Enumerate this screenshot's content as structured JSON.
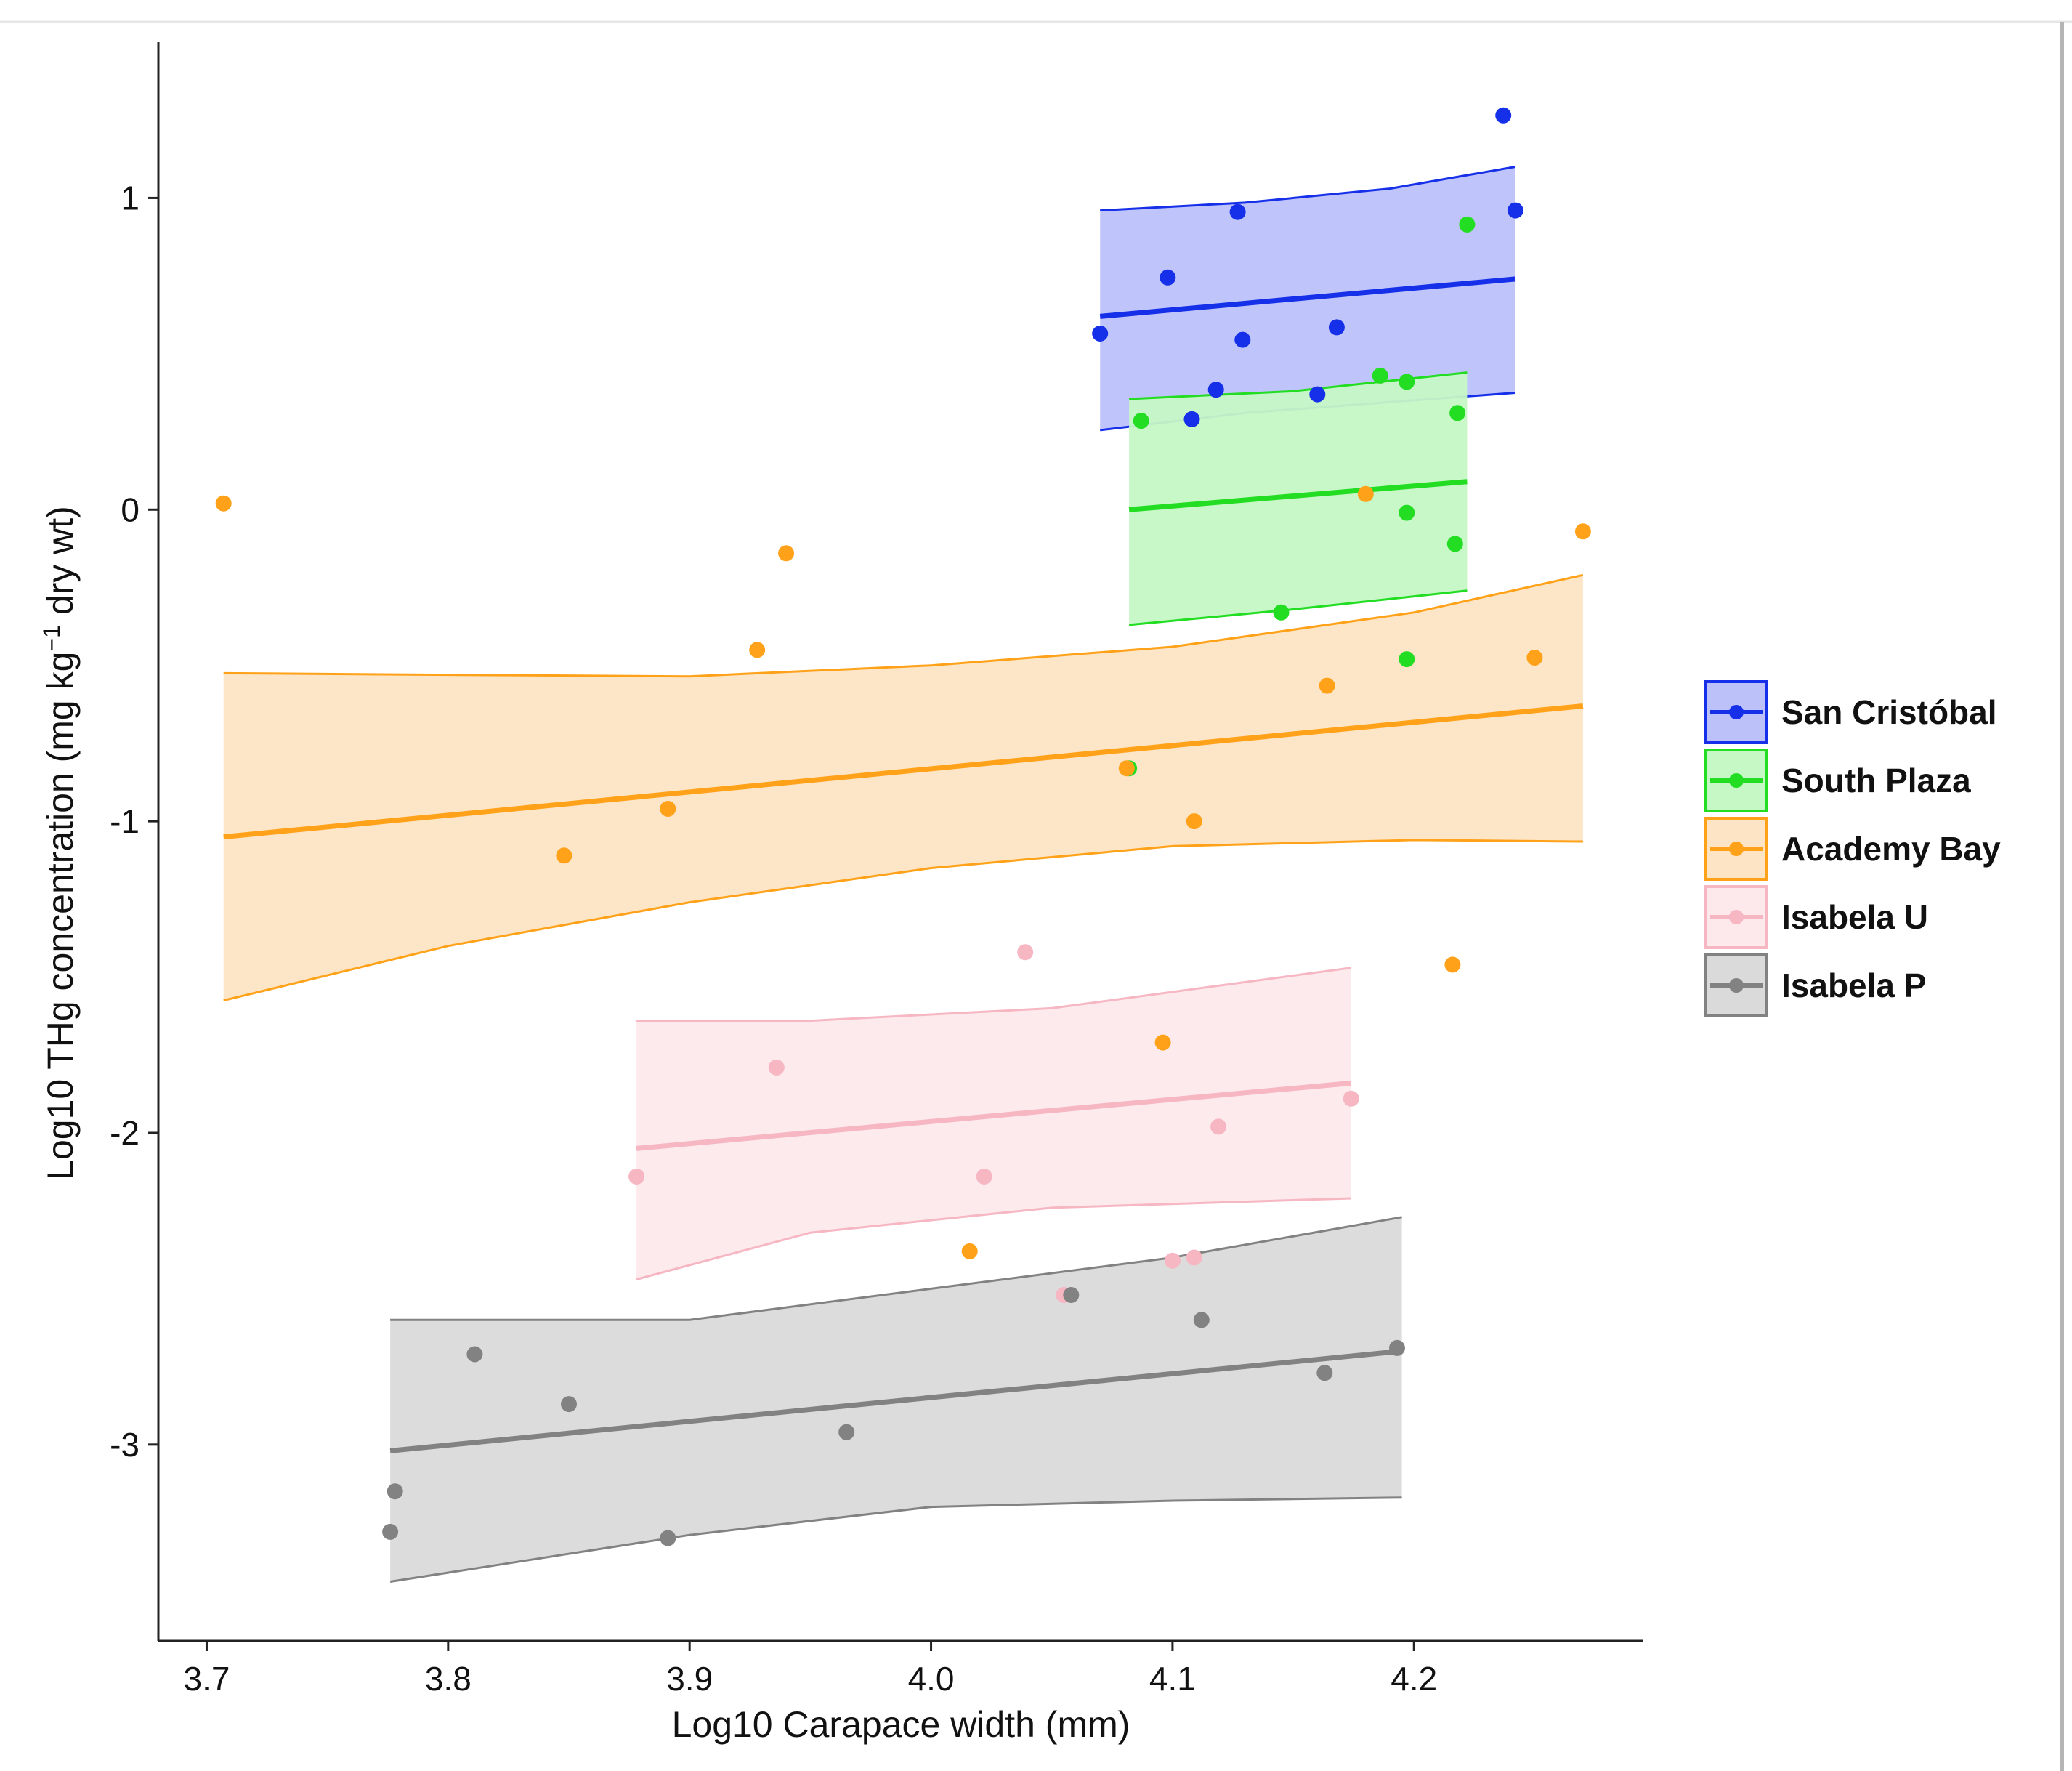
{
  "chart_data": {
    "type": "scatter",
    "title": "",
    "xlabel": "Log10 Carapace width (mm)",
    "ylabel_parts": [
      "Log10 THg concentration (mg kg",
      "−1",
      " dry wt)"
    ],
    "xlim": [
      3.68,
      4.295
    ],
    "ylim": [
      -3.63,
      1.5
    ],
    "x_ticks": [
      3.7,
      3.8,
      3.9,
      4.0,
      4.1,
      4.2
    ],
    "x_tick_labels": [
      "3.7",
      "3.8",
      "3.9",
      "4.0",
      "4.1",
      "4.2"
    ],
    "y_ticks": [
      -3,
      -2,
      -1,
      0,
      1
    ],
    "y_tick_labels": [
      "-3",
      "-2",
      "-1",
      "0",
      "1"
    ],
    "grid": false,
    "legend_position": "right",
    "series": [
      {
        "name": "San Cristóbal",
        "color": "#1530e8",
        "fill": "#bcc1fa",
        "points": [
          [
            4.07,
            0.565
          ],
          [
            4.098,
            0.745
          ],
          [
            4.127,
            0.955
          ],
          [
            4.129,
            0.545
          ],
          [
            4.118,
            0.385
          ],
          [
            4.108,
            0.29
          ],
          [
            4.168,
            0.585
          ],
          [
            4.16,
            0.37
          ],
          [
            4.237,
            1.265
          ],
          [
            4.242,
            0.96
          ]
        ],
        "fit": [
          [
            4.07,
            0.62
          ],
          [
            4.242,
            0.74
          ]
        ],
        "band_upper": [
          [
            4.07,
            0.96
          ],
          [
            4.13,
            0.985
          ],
          [
            4.19,
            1.03
          ],
          [
            4.242,
            1.1
          ]
        ],
        "band_lower": [
          [
            4.07,
            0.255
          ],
          [
            4.13,
            0.31
          ],
          [
            4.19,
            0.345
          ],
          [
            4.242,
            0.375
          ]
        ]
      },
      {
        "name": "South Plaza",
        "color": "#22dd22",
        "fill": "#c5f8c5",
        "points": [
          [
            4.087,
            0.285
          ],
          [
            4.186,
            0.43
          ],
          [
            4.197,
            0.41
          ],
          [
            4.222,
            0.915
          ],
          [
            4.218,
            0.31
          ],
          [
            4.197,
            -0.01
          ],
          [
            4.217,
            -0.11
          ],
          [
            4.145,
            -0.33
          ],
          [
            4.197,
            -0.48
          ],
          [
            4.082,
            -0.83
          ]
        ],
        "fit": [
          [
            4.082,
            0.0
          ],
          [
            4.222,
            0.09
          ]
        ],
        "band_upper": [
          [
            4.082,
            0.355
          ],
          [
            4.15,
            0.38
          ],
          [
            4.222,
            0.44
          ]
        ],
        "band_lower": [
          [
            4.082,
            -0.37
          ],
          [
            4.15,
            -0.32
          ],
          [
            4.222,
            -0.26
          ]
        ]
      },
      {
        "name": "Academy Bay",
        "color": "#ffa219",
        "fill": "#fde4c4",
        "points": [
          [
            3.707,
            0.02
          ],
          [
            3.94,
            -0.14
          ],
          [
            3.928,
            -0.45
          ],
          [
            3.891,
            -0.96
          ],
          [
            3.848,
            -1.11
          ],
          [
            4.081,
            -0.83
          ],
          [
            4.109,
            -1.0
          ],
          [
            4.18,
            0.05
          ],
          [
            4.27,
            -0.07
          ],
          [
            4.25,
            -0.475
          ],
          [
            4.164,
            -0.565
          ],
          [
            4.216,
            -1.46
          ],
          [
            4.096,
            -1.71
          ],
          [
            4.016,
            -2.38
          ]
        ],
        "fit": [
          [
            3.707,
            -1.05
          ],
          [
            4.27,
            -0.63
          ]
        ],
        "band_upper": [
          [
            3.707,
            -0.525
          ],
          [
            3.8,
            -0.53
          ],
          [
            3.9,
            -0.535
          ],
          [
            4.0,
            -0.5
          ],
          [
            4.1,
            -0.44
          ],
          [
            4.2,
            -0.33
          ],
          [
            4.27,
            -0.21
          ]
        ],
        "band_lower": [
          [
            3.707,
            -1.575
          ],
          [
            3.8,
            -1.4
          ],
          [
            3.9,
            -1.26
          ],
          [
            4.0,
            -1.15
          ],
          [
            4.1,
            -1.08
          ],
          [
            4.2,
            -1.06
          ],
          [
            4.27,
            -1.065
          ]
        ]
      },
      {
        "name": "Isabela U",
        "color": "#f6b6c2",
        "fill": "#fde9ec",
        "points": [
          [
            3.878,
            -2.14
          ],
          [
            3.936,
            -1.79
          ],
          [
            4.039,
            -1.42
          ],
          [
            4.022,
            -2.14
          ],
          [
            4.119,
            -1.98
          ],
          [
            4.174,
            -1.89
          ],
          [
            4.1,
            -2.41
          ],
          [
            4.109,
            -2.4
          ],
          [
            4.055,
            -2.52
          ]
        ],
        "fit": [
          [
            3.878,
            -2.05
          ],
          [
            4.174,
            -1.84
          ]
        ],
        "band_upper": [
          [
            3.878,
            -1.64
          ],
          [
            3.95,
            -1.64
          ],
          [
            4.05,
            -1.6
          ],
          [
            4.174,
            -1.47
          ]
        ],
        "band_lower": [
          [
            3.878,
            -2.47
          ],
          [
            3.95,
            -2.32
          ],
          [
            4.05,
            -2.24
          ],
          [
            4.174,
            -2.21
          ]
        ]
      },
      {
        "name": "Isabela P",
        "color": "#828282",
        "fill": "#dadada",
        "points": [
          [
            3.776,
            -3.28
          ],
          [
            3.778,
            -3.15
          ],
          [
            3.811,
            -2.71
          ],
          [
            3.85,
            -2.87
          ],
          [
            3.891,
            -3.3
          ],
          [
            3.965,
            -2.96
          ],
          [
            4.058,
            -2.52
          ],
          [
            4.112,
            -2.6
          ],
          [
            4.163,
            -2.77
          ],
          [
            4.193,
            -2.69
          ]
        ],
        "fit": [
          [
            3.776,
            -3.02
          ],
          [
            4.195,
            -2.7
          ]
        ],
        "band_upper": [
          [
            3.776,
            -2.6
          ],
          [
            3.9,
            -2.6
          ],
          [
            4.0,
            -2.5
          ],
          [
            4.1,
            -2.4
          ],
          [
            4.195,
            -2.27
          ]
        ],
        "band_lower": [
          [
            3.776,
            -3.44
          ],
          [
            3.9,
            -3.29
          ],
          [
            4.0,
            -3.2
          ],
          [
            4.1,
            -3.18
          ],
          [
            4.195,
            -3.17
          ]
        ]
      }
    ]
  }
}
